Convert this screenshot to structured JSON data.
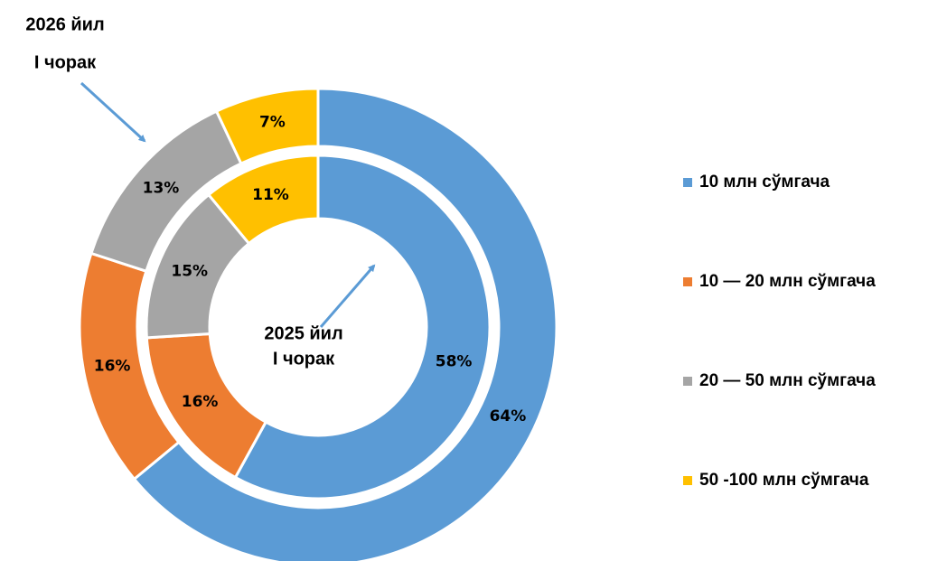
{
  "chart_data": {
    "type": "donut",
    "categories": [
      "10 млн сўмгача",
      "10 — 20 млн сўмгача",
      "20 — 50 млн сўмгача",
      "50 -100 млн сўмгача"
    ],
    "colors": [
      "#5b9bd5",
      "#ed7d31",
      "#a5a5a5",
      "#ffc000"
    ],
    "series": [
      {
        "name": [
          "2026 йил",
          "I чорак"
        ],
        "values": [
          64,
          16,
          13,
          7
        ],
        "value_labels": [
          "64%",
          "16%",
          "13%",
          "7%"
        ]
      },
      {
        "name": [
          "2025 йил",
          "I чорак"
        ],
        "values": [
          58,
          16,
          15,
          11
        ],
        "value_labels": [
          "58%",
          "16%",
          "15%",
          "11%"
        ]
      }
    ]
  }
}
